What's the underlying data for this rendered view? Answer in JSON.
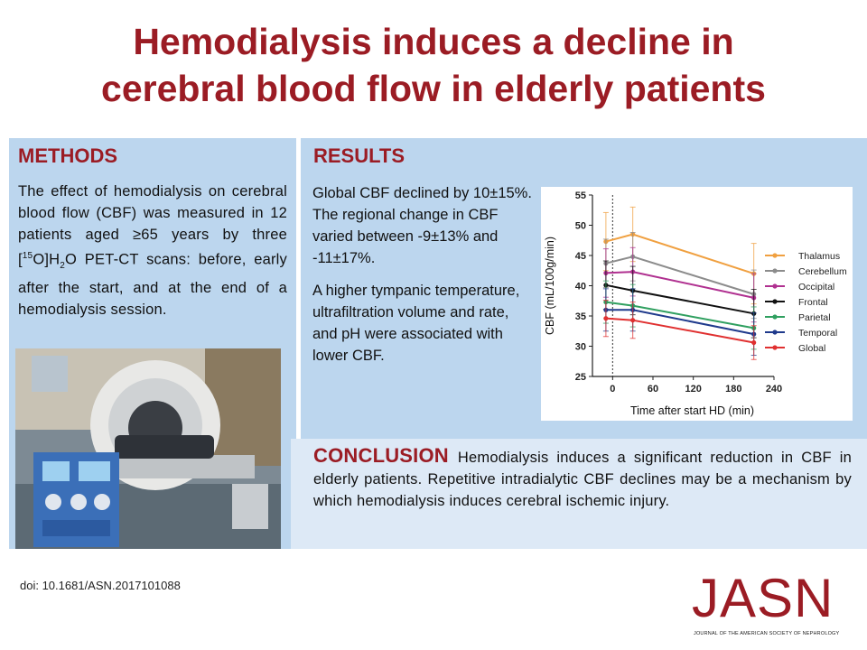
{
  "title": {
    "line1": "Hemodialysis induces a decline in",
    "line2": "cerebral blood flow in elderly patients"
  },
  "methods": {
    "heading": "METHODS",
    "text_part1": "The effect of hemodialysis on cerebral blood flow (CBF) was measured in 12 patients aged ≥65 years by three [",
    "sup": "15",
    "text_part2": "O]H",
    "sub": "2",
    "text_part3": "O PET-CT scans: before, early after the start, and at the end of a hemodialysis session."
  },
  "results": {
    "heading": "RESULTS",
    "paragraph1": "Global CBF declined by 10±15%. The regional change in CBF varied between -9±13% and -11±17%.",
    "paragraph2": "A higher tympanic temperature, ultrafiltration volume and rate, and pH were associated with lower CBF."
  },
  "conclusion": {
    "heading": "CONCLUSION",
    "text": "Hemodialysis induces a significant reduction in CBF in elderly patients. Repetitive intradialytic CBF declines may be a mechanism by which hemodialysis induces cerebral ischemic injury."
  },
  "doi": "doi: 10.1681/ASN.2017101088",
  "logo": {
    "word": "JASN",
    "subtitle": "JOURNAL OF THE AMERICAN SOCIETY OF NEPHROLOGY"
  },
  "colors": {
    "accent": "#9b1c24",
    "panel": "#bcd6ee",
    "conclusion_panel": "#dde9f6"
  },
  "chart_data": {
    "type": "line",
    "title": "",
    "xlabel": "Time after start HD (min)",
    "ylabel": "CBF (mL/100g/min)",
    "xlim": [
      -30,
      240
    ],
    "ylim": [
      25,
      55
    ],
    "x_ticks": [
      0,
      60,
      120,
      180,
      240
    ],
    "y_ticks": [
      25,
      30,
      35,
      40,
      45,
      50,
      55
    ],
    "reference_line_x": 0,
    "legend_position": "right",
    "x": [
      -10,
      30,
      210
    ],
    "series": [
      {
        "name": "Thalamus",
        "color": "#f0a040",
        "values": [
          47.3,
          48.5,
          42.0
        ],
        "error": [
          4.8,
          4.5,
          5.0
        ]
      },
      {
        "name": "Cerebellum",
        "color": "#8c8c8c",
        "values": [
          43.7,
          44.8,
          38.6
        ],
        "error": [
          4.0,
          4.0,
          4.0
        ]
      },
      {
        "name": "Occipital",
        "color": "#b03090",
        "values": [
          42.1,
          42.3,
          38.0
        ],
        "error": [
          4.0,
          4.0,
          4.0
        ]
      },
      {
        "name": "Frontal",
        "color": "#111111",
        "values": [
          40.1,
          39.2,
          35.4
        ],
        "error": [
          4.0,
          4.0,
          4.0
        ]
      },
      {
        "name": "Parietal",
        "color": "#30a060",
        "values": [
          37.3,
          36.7,
          33.0
        ],
        "error": [
          3.5,
          3.5,
          3.5
        ]
      },
      {
        "name": "Temporal",
        "color": "#1f3a8c",
        "values": [
          36.0,
          36.0,
          32.0
        ],
        "error": [
          3.5,
          3.5,
          3.5
        ]
      },
      {
        "name": "Global",
        "color": "#e03030",
        "values": [
          34.6,
          34.3,
          30.6
        ],
        "error": [
          3.0,
          3.0,
          2.8
        ]
      }
    ]
  }
}
